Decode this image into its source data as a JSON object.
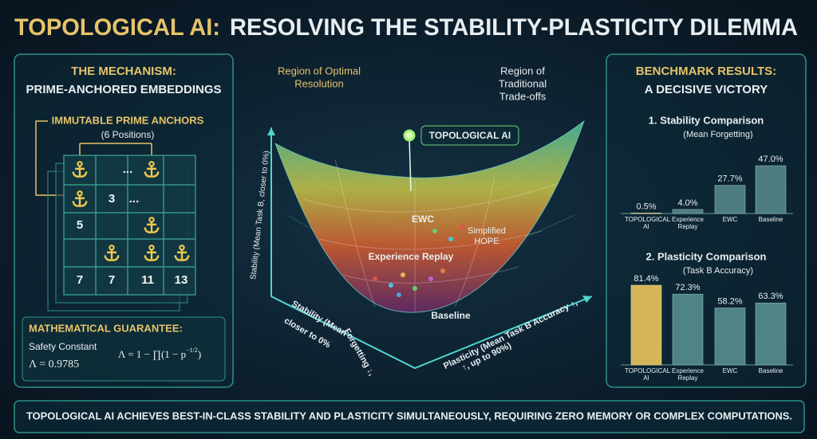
{
  "title": {
    "highlight": "TOPOLOGICAL AI:",
    "rest": "RESOLVING THE STABILITY-PLASTICITY DILEMMA"
  },
  "mechanism": {
    "heading": "THE MECHANISM:",
    "subheading": "PRIME-ANCHORED EMBEDDINGS",
    "anchors_label": "IMMUTABLE PRIME ANCHORS",
    "anchors_count": "(6 Positions)",
    "cells": [
      "...",
      "3",
      "...",
      "5",
      "7",
      "7",
      "11",
      "13"
    ],
    "guarantee": {
      "heading": "MATHEMATICAL GUARANTEE:",
      "constant_label": "Safety Constant",
      "constant_value": "Λ = 0.9785",
      "formula": {
        "main": "Λ = 1 − ∏(1 − p",
        "exponent": "−1/2",
        "close": ")"
      }
    }
  },
  "landscape": {
    "region_optimal": [
      "Region of Optimal",
      "Resolution"
    ],
    "region_tradeoff": [
      "Region of",
      "Traditional",
      "Trade-offs"
    ],
    "peak_label": "TOPOLOGICAL AI",
    "ewc": "EWC",
    "hope": [
      "Simplified",
      "HOPE"
    ],
    "replay": "Experience Replay",
    "baseline": "Baseline",
    "y_axis": "Stability (Mean Task B, closer to 0%)",
    "left_axis": [
      "Stability (Mean",
      "closer to 0%",
      "Forgetting ↓,"
    ],
    "right_axis": [
      "Plasticity (Mean Task B Accuracy ↑,",
      "↑, up to 90%)"
    ]
  },
  "benchmark": {
    "heading": "BENCHMARK RESULTS:",
    "subheading": "A DECISIVE VICTORY"
  },
  "chart_data": [
    {
      "type": "bar",
      "title": "1. Stability Comparison",
      "subtitle": "(Mean Forgetting)",
      "categories": [
        "TOPOLOGICAL AI",
        "Experience Replay",
        "EWC",
        "Baseline"
      ],
      "values": [
        0.5,
        4.0,
        27.7,
        47.0
      ],
      "value_labels": [
        "0.5%",
        "4.0%",
        "27.7%",
        "47.0%"
      ],
      "colors": [
        "#3f8f70",
        "#4d7d80",
        "#4d7d80",
        "#4d7d80"
      ]
    },
    {
      "type": "bar",
      "title": "2. Plasticity Comparison",
      "subtitle": "(Task B Accuracy)",
      "categories": [
        "TOPOLOGICAL AI",
        "Experience Replay",
        "EWC",
        "Baseline"
      ],
      "values": [
        81.4,
        72.3,
        58.2,
        63.3
      ],
      "value_labels": [
        "81.4%",
        "72.3%",
        "58.2%",
        "63.3%"
      ],
      "colors": [
        "#d6b458",
        "#4f8487",
        "#4f8487",
        "#4f8487"
      ]
    }
  ],
  "footer": "TOPOLOGICAL AI ACHIEVES BEST-IN-CLASS STABILITY AND PLASTICITY SIMULTANEOUSLY, REQUIRING ZERO MEMORY OR COMPLEX COMPUTATIONS."
}
